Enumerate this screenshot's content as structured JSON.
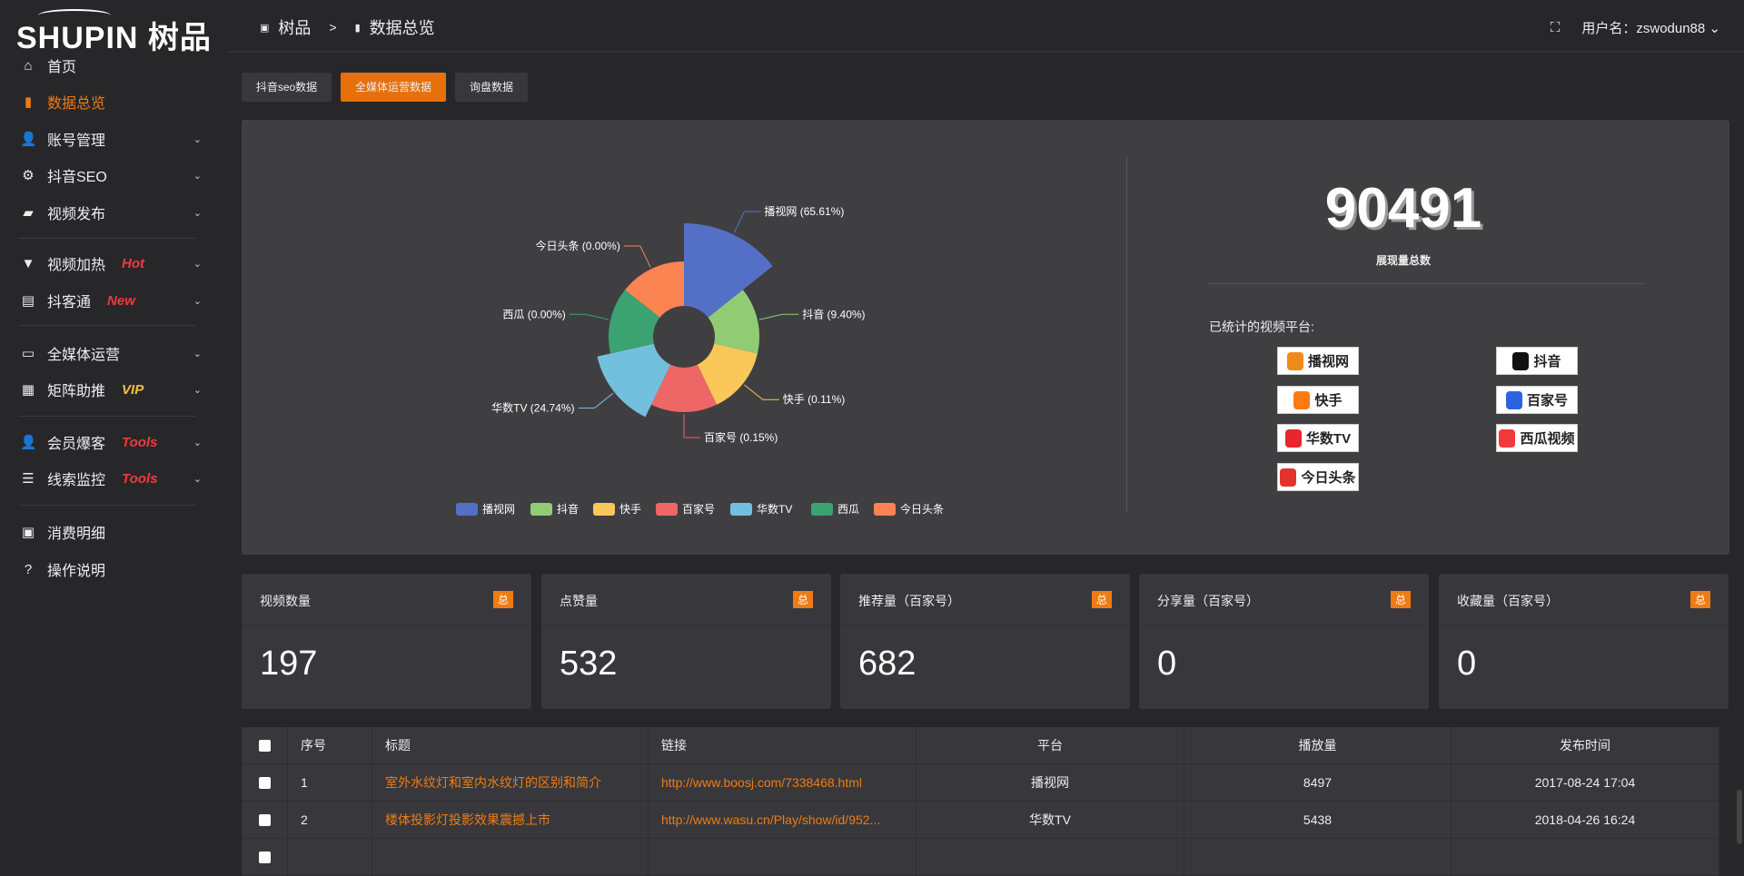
{
  "brand": {
    "logo_text": "SHUPIN",
    "logo_cn": "树品"
  },
  "sidebar": {
    "items": [
      {
        "label": "首页",
        "icon": "home-icon",
        "glyph": "⌂"
      },
      {
        "label": "数据总览",
        "icon": "bar-chart-icon",
        "glyph": "▮",
        "active": true
      },
      {
        "label": "账号管理",
        "icon": "user-icon",
        "glyph": "👤"
      },
      {
        "label": "抖音SEO",
        "icon": "gear-icon",
        "glyph": "⚙"
      },
      {
        "label": "视频发布",
        "icon": "camera-icon",
        "glyph": "▰"
      },
      {
        "label": "视频加热",
        "icon": "heater-icon",
        "glyph": "▼",
        "badge": "Hot"
      },
      {
        "label": "抖客通",
        "icon": "chat-icon",
        "glyph": "▤",
        "badge": "New"
      },
      {
        "label": "全媒体运营",
        "icon": "monitor-icon",
        "glyph": "▭"
      },
      {
        "label": "矩阵助推",
        "icon": "grid-icon",
        "glyph": "▦",
        "badge": "VIP"
      },
      {
        "label": "会员爆客",
        "icon": "member-icon",
        "glyph": "👤",
        "badge": "Tools"
      },
      {
        "label": "线索监控",
        "icon": "sliders-icon",
        "glyph": "☰",
        "badge": "Tools"
      },
      {
        "label": "消费明细",
        "icon": "wallet-icon",
        "glyph": "▣"
      },
      {
        "label": "操作说明",
        "icon": "help-icon",
        "glyph": "?"
      }
    ]
  },
  "header": {
    "crumb_home": "树品",
    "crumb_sep": ">",
    "crumb_current": "数据总览",
    "user_label": "用户名：zswodun88"
  },
  "tabs": [
    {
      "label": "抖音seo数据"
    },
    {
      "label": "全媒体运营数据",
      "active": true
    },
    {
      "label": "询盘数据"
    }
  ],
  "summary": {
    "total": "90491",
    "total_label": "展现量总数",
    "platforms_title": "已统计的视频平台:",
    "platforms": [
      {
        "name": "播视网",
        "color": "#f08a1a"
      },
      {
        "name": "抖音",
        "color": "#111"
      },
      {
        "name": "快手",
        "color": "#ff7a0f"
      },
      {
        "name": "百家号",
        "color": "#2a63e0"
      },
      {
        "name": "华数TV",
        "color": "#e8262b"
      },
      {
        "name": "西瓜视频",
        "color": "#f23a3a"
      },
      {
        "name": "今日头条",
        "color": "#e3322b"
      }
    ]
  },
  "chart_data": {
    "type": "pie",
    "rose": true,
    "categories": [
      "播视网",
      "抖音",
      "快手",
      "百家号",
      "华数TV",
      "西瓜",
      "今日头条"
    ],
    "values": [
      65.61,
      9.4,
      0.11,
      0.15,
      24.74,
      0.0,
      0.0
    ],
    "labels": [
      "播视网 (65.61%)",
      "抖音 (9.40%)",
      "快手 (0.11%)",
      "百家号 (0.15%)",
      "华数TV (24.74%)",
      "西瓜 (0.00%)",
      "今日头条 (0.00%)"
    ],
    "colors": [
      "#5470c6",
      "#91cc75",
      "#fac858",
      "#ee6666",
      "#73c0de",
      "#3ba272",
      "#fc8452"
    ],
    "legend": "bottom"
  },
  "cards": [
    {
      "title": "视频数量",
      "badge": "总",
      "value": "197"
    },
    {
      "title": "点赞量",
      "badge": "总",
      "value": "532"
    },
    {
      "title": "推荐量（百家号）",
      "badge": "总",
      "value": "682"
    },
    {
      "title": "分享量（百家号）",
      "badge": "总",
      "value": "0"
    },
    {
      "title": "收藏量（百家号）",
      "badge": "总",
      "value": "0"
    }
  ],
  "table": {
    "headers": [
      "序号",
      "标题",
      "链接",
      "平台",
      "播放量",
      "发布时间"
    ],
    "rows": [
      [
        "1",
        "室外水纹灯和室内水纹灯的区别和简介",
        "http://www.boosj.com/7338468.html",
        "播视网",
        "8497",
        "2017-08-24 17:04"
      ],
      [
        "2",
        "楼体投影灯投影效果震撼上市",
        "http://www.wasu.cn/Play/show/id/952...",
        "华数TV",
        "5438",
        "2018-04-26 16:24"
      ]
    ]
  }
}
